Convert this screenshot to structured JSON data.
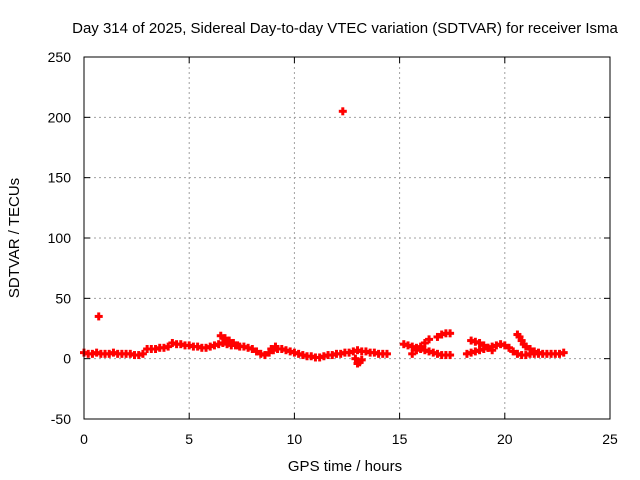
{
  "chart_data": {
    "type": "scatter",
    "title": "Day 314 of 2025, Sidereal Day-to-day VTEC variation (SDTVAR) for receiver Isma",
    "xlabel": "GPS time / hours",
    "ylabel": "SDTVAR / TECUs",
    "xlim": [
      0,
      25
    ],
    "ylim": [
      -50,
      250
    ],
    "xticks": [
      "0",
      "5",
      "10",
      "15",
      "20",
      "25"
    ],
    "yticks": [
      "-50",
      "0",
      "50",
      "100",
      "150",
      "200",
      "250"
    ],
    "grid": true,
    "marker_color": "#ff0000",
    "gridline_color": "#a0a0a0",
    "series": [
      {
        "name": "SDTVAR",
        "x": [
          0.0,
          0.2,
          0.4,
          0.6,
          0.8,
          1.0,
          1.2,
          1.4,
          1.6,
          1.8,
          2.0,
          2.2,
          2.4,
          2.6,
          2.8,
          3.0,
          3.2,
          3.4,
          3.6,
          3.8,
          4.0,
          4.2,
          4.4,
          4.6,
          4.8,
          5.0,
          5.2,
          5.4,
          5.6,
          5.8,
          6.0,
          6.2,
          6.4,
          6.6,
          6.8,
          7.0,
          7.2,
          7.4,
          7.6,
          7.8,
          8.0,
          8.2,
          8.4,
          8.6,
          8.8,
          9.0,
          9.2,
          9.4,
          9.6,
          9.8,
          10.0,
          10.2,
          10.4,
          10.6,
          10.8,
          11.0,
          11.2,
          11.4,
          11.6,
          11.8,
          12.0,
          12.2,
          12.4,
          12.6,
          12.8,
          13.0,
          13.2,
          13.4,
          13.6,
          13.8,
          14.0,
          14.2,
          14.4,
          15.2,
          15.4,
          15.6,
          15.8,
          16.0,
          16.2,
          16.4,
          16.6,
          16.8,
          17.0,
          17.2,
          17.4,
          18.2,
          18.4,
          18.6,
          18.8,
          19.0,
          19.2,
          19.4,
          19.6,
          19.8,
          20.0,
          20.2,
          20.4,
          20.6,
          20.8,
          21.0,
          21.2,
          21.4,
          21.6,
          21.8,
          22.0,
          22.2,
          22.4,
          22.6,
          22.8,
          6.5,
          6.7,
          6.9,
          7.1,
          7.3,
          8.9,
          9.1,
          12.9,
          13.0,
          13.1,
          13.2,
          15.6,
          15.8,
          16.0,
          16.2,
          16.4,
          16.8,
          17.0,
          17.2,
          17.4,
          18.4,
          18.6,
          18.8,
          19.0,
          19.2,
          19.4,
          20.6,
          20.7,
          20.8,
          20.9,
          21.0,
          21.2,
          21.4,
          21.6,
          0.7,
          12.3
        ],
        "y": [
          5,
          4,
          4,
          5,
          4,
          4,
          4,
          5,
          4,
          4,
          4,
          4,
          3,
          3,
          4,
          8,
          8,
          8,
          9,
          9,
          10,
          13,
          12,
          12,
          11,
          11,
          10,
          10,
          9,
          9,
          10,
          11,
          12,
          13,
          12,
          11,
          11,
          10,
          10,
          9,
          8,
          6,
          4,
          3,
          5,
          7,
          8,
          8,
          7,
          6,
          5,
          4,
          3,
          2,
          2,
          1,
          1,
          2,
          3,
          3,
          4,
          4,
          5,
          5,
          6,
          7,
          6,
          6,
          5,
          5,
          4,
          4,
          4,
          12,
          11,
          10,
          9,
          8,
          7,
          6,
          5,
          4,
          3,
          3,
          3,
          4,
          5,
          6,
          7,
          8,
          9,
          10,
          11,
          12,
          11,
          9,
          6,
          4,
          3,
          3,
          4,
          4,
          4,
          4,
          4,
          4,
          4,
          4,
          5,
          19,
          17,
          15,
          13,
          11,
          8,
          10,
          0,
          -4,
          -3,
          -1,
          4,
          7,
          10,
          13,
          16,
          18,
          20,
          21,
          21,
          15,
          14,
          13,
          11,
          9,
          7,
          20,
          18,
          15,
          12,
          10,
          8,
          6,
          5,
          35,
          205
        ]
      }
    ]
  }
}
